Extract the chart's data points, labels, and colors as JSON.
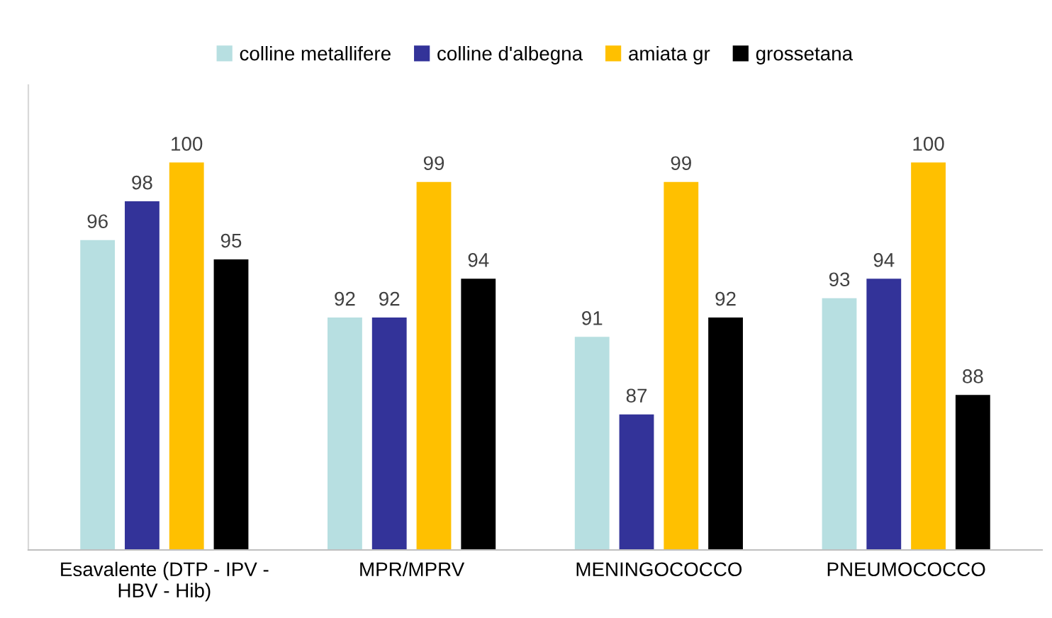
{
  "chart_data": {
    "type": "bar",
    "categories": [
      "Esavalente (DTP - IPV -\nHBV - Hib)",
      "MPR/MPRV",
      "MENINGOCOCCO",
      "PNEUMOCOCCO"
    ],
    "series": [
      {
        "name": "colline metallifere",
        "color": "#b7dfe1",
        "values": [
          96,
          92,
          91,
          93
        ]
      },
      {
        "name": "colline d'albegna",
        "color": "#333399",
        "values": [
          98,
          92,
          87,
          94
        ]
      },
      {
        "name": "amiata gr",
        "color": "#ffc000",
        "values": [
          100,
          99,
          99,
          100
        ]
      },
      {
        "name": "grossetana",
        "color": "#000000",
        "values": [
          95,
          94,
          92,
          88
        ]
      }
    ],
    "ylim": [
      80,
      104
    ],
    "tick_labels": "x",
    "data_labels": true,
    "legend": "top",
    "grid": false
  }
}
